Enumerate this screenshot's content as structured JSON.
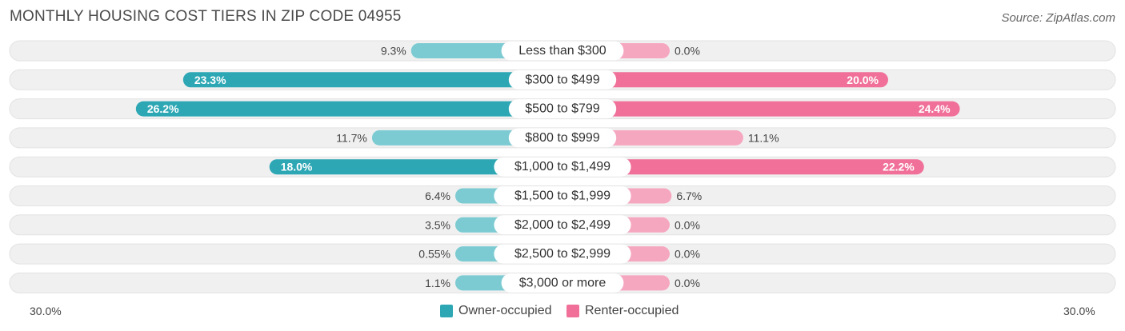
{
  "header": {
    "title": "MONTHLY HOUSING COST TIERS IN ZIP CODE 04955",
    "source": "Source: ZipAtlas.com"
  },
  "colors": {
    "owner_strong": "#2ea7b5",
    "owner_light": "#7ccbd3",
    "renter_strong": "#f07099",
    "renter_light": "#f6a7c0",
    "row_bg": "#f0f0f0"
  },
  "chart_data": {
    "type": "bar",
    "orientation": "horizontal-diverging",
    "categories": [
      "Less than $300",
      "$300 to $499",
      "$500 to $799",
      "$800 to $999",
      "$1,000 to $1,499",
      "$1,500 to $1,999",
      "$2,000 to $2,499",
      "$2,500 to $2,999",
      "$3,000 or more"
    ],
    "series": [
      {
        "name": "Owner-occupied",
        "values": [
          9.3,
          23.3,
          26.2,
          11.7,
          18.0,
          6.4,
          3.5,
          0.55,
          1.1
        ],
        "labels": [
          "9.3%",
          "23.3%",
          "26.2%",
          "11.7%",
          "18.0%",
          "6.4%",
          "3.5%",
          "0.55%",
          "1.1%"
        ]
      },
      {
        "name": "Renter-occupied",
        "values": [
          0.0,
          20.0,
          24.4,
          11.1,
          22.2,
          6.7,
          0.0,
          0.0,
          0.0
        ],
        "labels": [
          "0.0%",
          "20.0%",
          "24.4%",
          "11.1%",
          "22.2%",
          "6.7%",
          "0.0%",
          "0.0%",
          "0.0%"
        ]
      }
    ],
    "xlim": [
      -30,
      30
    ],
    "axis_left_label": "30.0%",
    "axis_right_label": "30.0%",
    "legend_position": "bottom-center"
  }
}
